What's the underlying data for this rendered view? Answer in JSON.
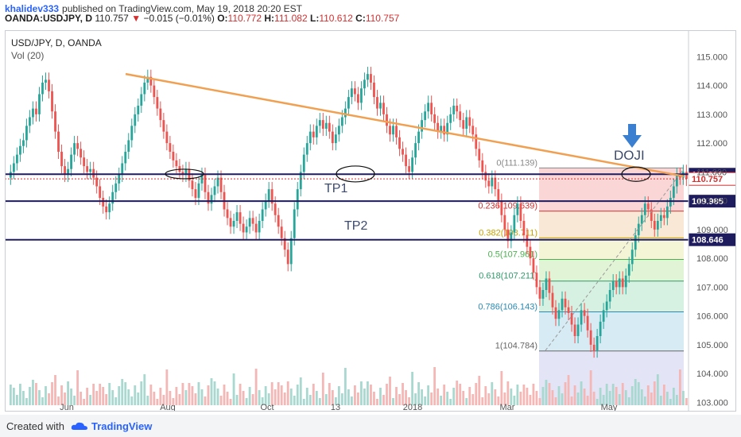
{
  "header": {
    "author": "khalidev333",
    "published": "published on TradingView.com, May 19, 2018 20:20 EST"
  },
  "ohlc": {
    "symbol": "OANDA:USDJPY, D",
    "last": "110.757",
    "change": "−0.015 (−0.01%)",
    "open_label": "O:",
    "open": "110.772",
    "high_label": "H:",
    "high": "111.082",
    "low_label": "L:",
    "low": "110.612",
    "close_label": "C:",
    "close": "110.757"
  },
  "legend": {
    "title": "USD/JPY, D, OANDA",
    "volume": "Vol (20)"
  },
  "annotations": {
    "tp1": "TP1",
    "tp2": "TP2",
    "doji": "DOJI"
  },
  "footer": {
    "created_with": "Created with",
    "brand": "TradingView"
  },
  "colors": {
    "up": "#26a69a",
    "down": "#ef5350",
    "trendline": "#f0a050",
    "level": "#1e1b5e",
    "fib_0": "#f8c8c8",
    "fib_236": "#f8e0c8",
    "fib_382": "#f0f0c8",
    "fib_5": "#d8f0c8",
    "fib_618": "#c8ecd8",
    "fib_786": "#c8e4f0",
    "fib_1": "#e0e0e0",
    "fib_ext": "#d8d8f4"
  },
  "chart_data": {
    "type": "candlestick",
    "title": "USD/JPY, D, OANDA",
    "ylim": [
      102.9,
      115.7
    ],
    "y_ticks": [
      "115.000",
      "114.000",
      "113.000",
      "112.000",
      "111.000",
      "110.000",
      "109.000",
      "108.000",
      "107.000",
      "106.000",
      "105.000",
      "104.000",
      "103.000"
    ],
    "x_ticks": [
      "Jun",
      "Aug",
      "Oct",
      "13",
      "2018",
      "Mar",
      "May"
    ],
    "horizontal_levels": [
      {
        "value": 110.92,
        "label": "110.920"
      },
      {
        "value": 109.985,
        "label": "109.985"
      },
      {
        "value": 108.646,
        "label": "108.646"
      }
    ],
    "current_price": {
      "value": 110.757,
      "label": "110.757"
    },
    "trendline": {
      "from": {
        "date": "2017-05-10",
        "price": 114.4
      },
      "to": {
        "date": "2018-06-05",
        "price": 110.85
      }
    },
    "fibonacci": [
      {
        "level": "0",
        "price": 111.139,
        "label": "0(111.139)"
      },
      {
        "level": "0.236",
        "price": 109.639,
        "label": "0.236(109.639)"
      },
      {
        "level": "0.382",
        "price": 108.711,
        "label": "0.382(108.711)"
      },
      {
        "level": "0.5",
        "price": 107.961,
        "label": "0.5(107.961)"
      },
      {
        "level": "0.618",
        "price": 107.211,
        "label": "0.618(107.211)"
      },
      {
        "level": "0.786",
        "price": 106.143,
        "label": "0.786(106.143)"
      },
      {
        "level": "1",
        "price": 104.784,
        "label": "1(104.784)"
      }
    ],
    "candles_close": [
      111.0,
      111.3,
      111.6,
      111.9,
      112.1,
      112.6,
      112.9,
      113.2,
      113.0,
      113.7,
      114.1,
      114.2,
      113.8,
      113.1,
      112.4,
      111.7,
      111.2,
      110.9,
      111.1,
      111.6,
      112.0,
      111.8,
      111.5,
      111.2,
      111.0,
      111.1,
      110.8,
      110.5,
      110.1,
      109.8,
      109.6,
      109.9,
      110.3,
      110.6,
      110.9,
      111.3,
      111.7,
      112.1,
      112.6,
      113.0,
      113.3,
      113.7,
      114.1,
      114.3,
      114.0,
      113.6,
      113.2,
      112.8,
      112.4,
      112.0,
      111.7,
      111.4,
      111.2,
      111.0,
      110.9,
      111.1,
      110.7,
      110.4,
      110.1,
      110.6,
      110.9,
      110.3,
      109.9,
      110.2,
      110.5,
      110.8,
      110.3,
      109.7,
      109.4,
      109.1,
      109.3,
      109.6,
      109.2,
      108.9,
      109.1,
      109.4,
      109.2,
      108.9,
      109.3,
      109.7,
      110.0,
      110.4,
      109.9,
      109.5,
      109.1,
      108.7,
      108.3,
      107.8,
      108.7,
      109.7,
      110.4,
      111.0,
      111.6,
      112.0,
      112.4,
      112.2,
      112.6,
      112.8,
      112.5,
      112.7,
      112.4,
      112.0,
      112.3,
      112.6,
      112.9,
      113.2,
      113.6,
      113.9,
      113.7,
      113.4,
      113.9,
      114.2,
      114.4,
      114.1,
      113.6,
      113.2,
      113.4,
      113.0,
      112.6,
      112.3,
      112.6,
      112.2,
      111.8,
      111.6,
      111.2,
      111.0,
      111.5,
      112.0,
      112.4,
      112.8,
      113.1,
      113.4,
      113.0,
      112.7,
      112.4,
      112.6,
      112.3,
      112.7,
      113.0,
      113.3,
      113.1,
      112.8,
      112.5,
      112.9,
      112.6,
      112.3,
      111.8,
      111.4,
      111.0,
      110.7,
      110.5,
      110.8,
      110.4,
      110.0,
      109.5,
      109.0,
      108.6,
      108.9,
      109.5,
      109.9,
      109.3,
      108.8,
      108.4,
      108.0,
      107.5,
      107.0,
      106.6,
      106.9,
      107.3,
      106.8,
      106.3,
      105.9,
      106.2,
      106.6,
      106.3,
      106.1,
      105.7,
      105.3,
      105.7,
      106.2,
      106.0,
      105.5,
      105.0,
      104.8,
      105.3,
      105.8,
      106.2,
      106.5,
      106.9,
      107.2,
      107.0,
      107.3,
      107.0,
      107.4,
      107.8,
      108.3,
      108.8,
      109.2,
      109.5,
      109.9,
      109.7,
      109.3,
      109.0,
      109.3,
      109.5,
      109.4,
      109.8,
      110.1,
      110.5,
      110.9,
      110.8,
      111.0,
      110.76
    ],
    "volume_ticks": [],
    "series": [
      {
        "name": "Vol (20)",
        "type": "volume"
      }
    ]
  }
}
